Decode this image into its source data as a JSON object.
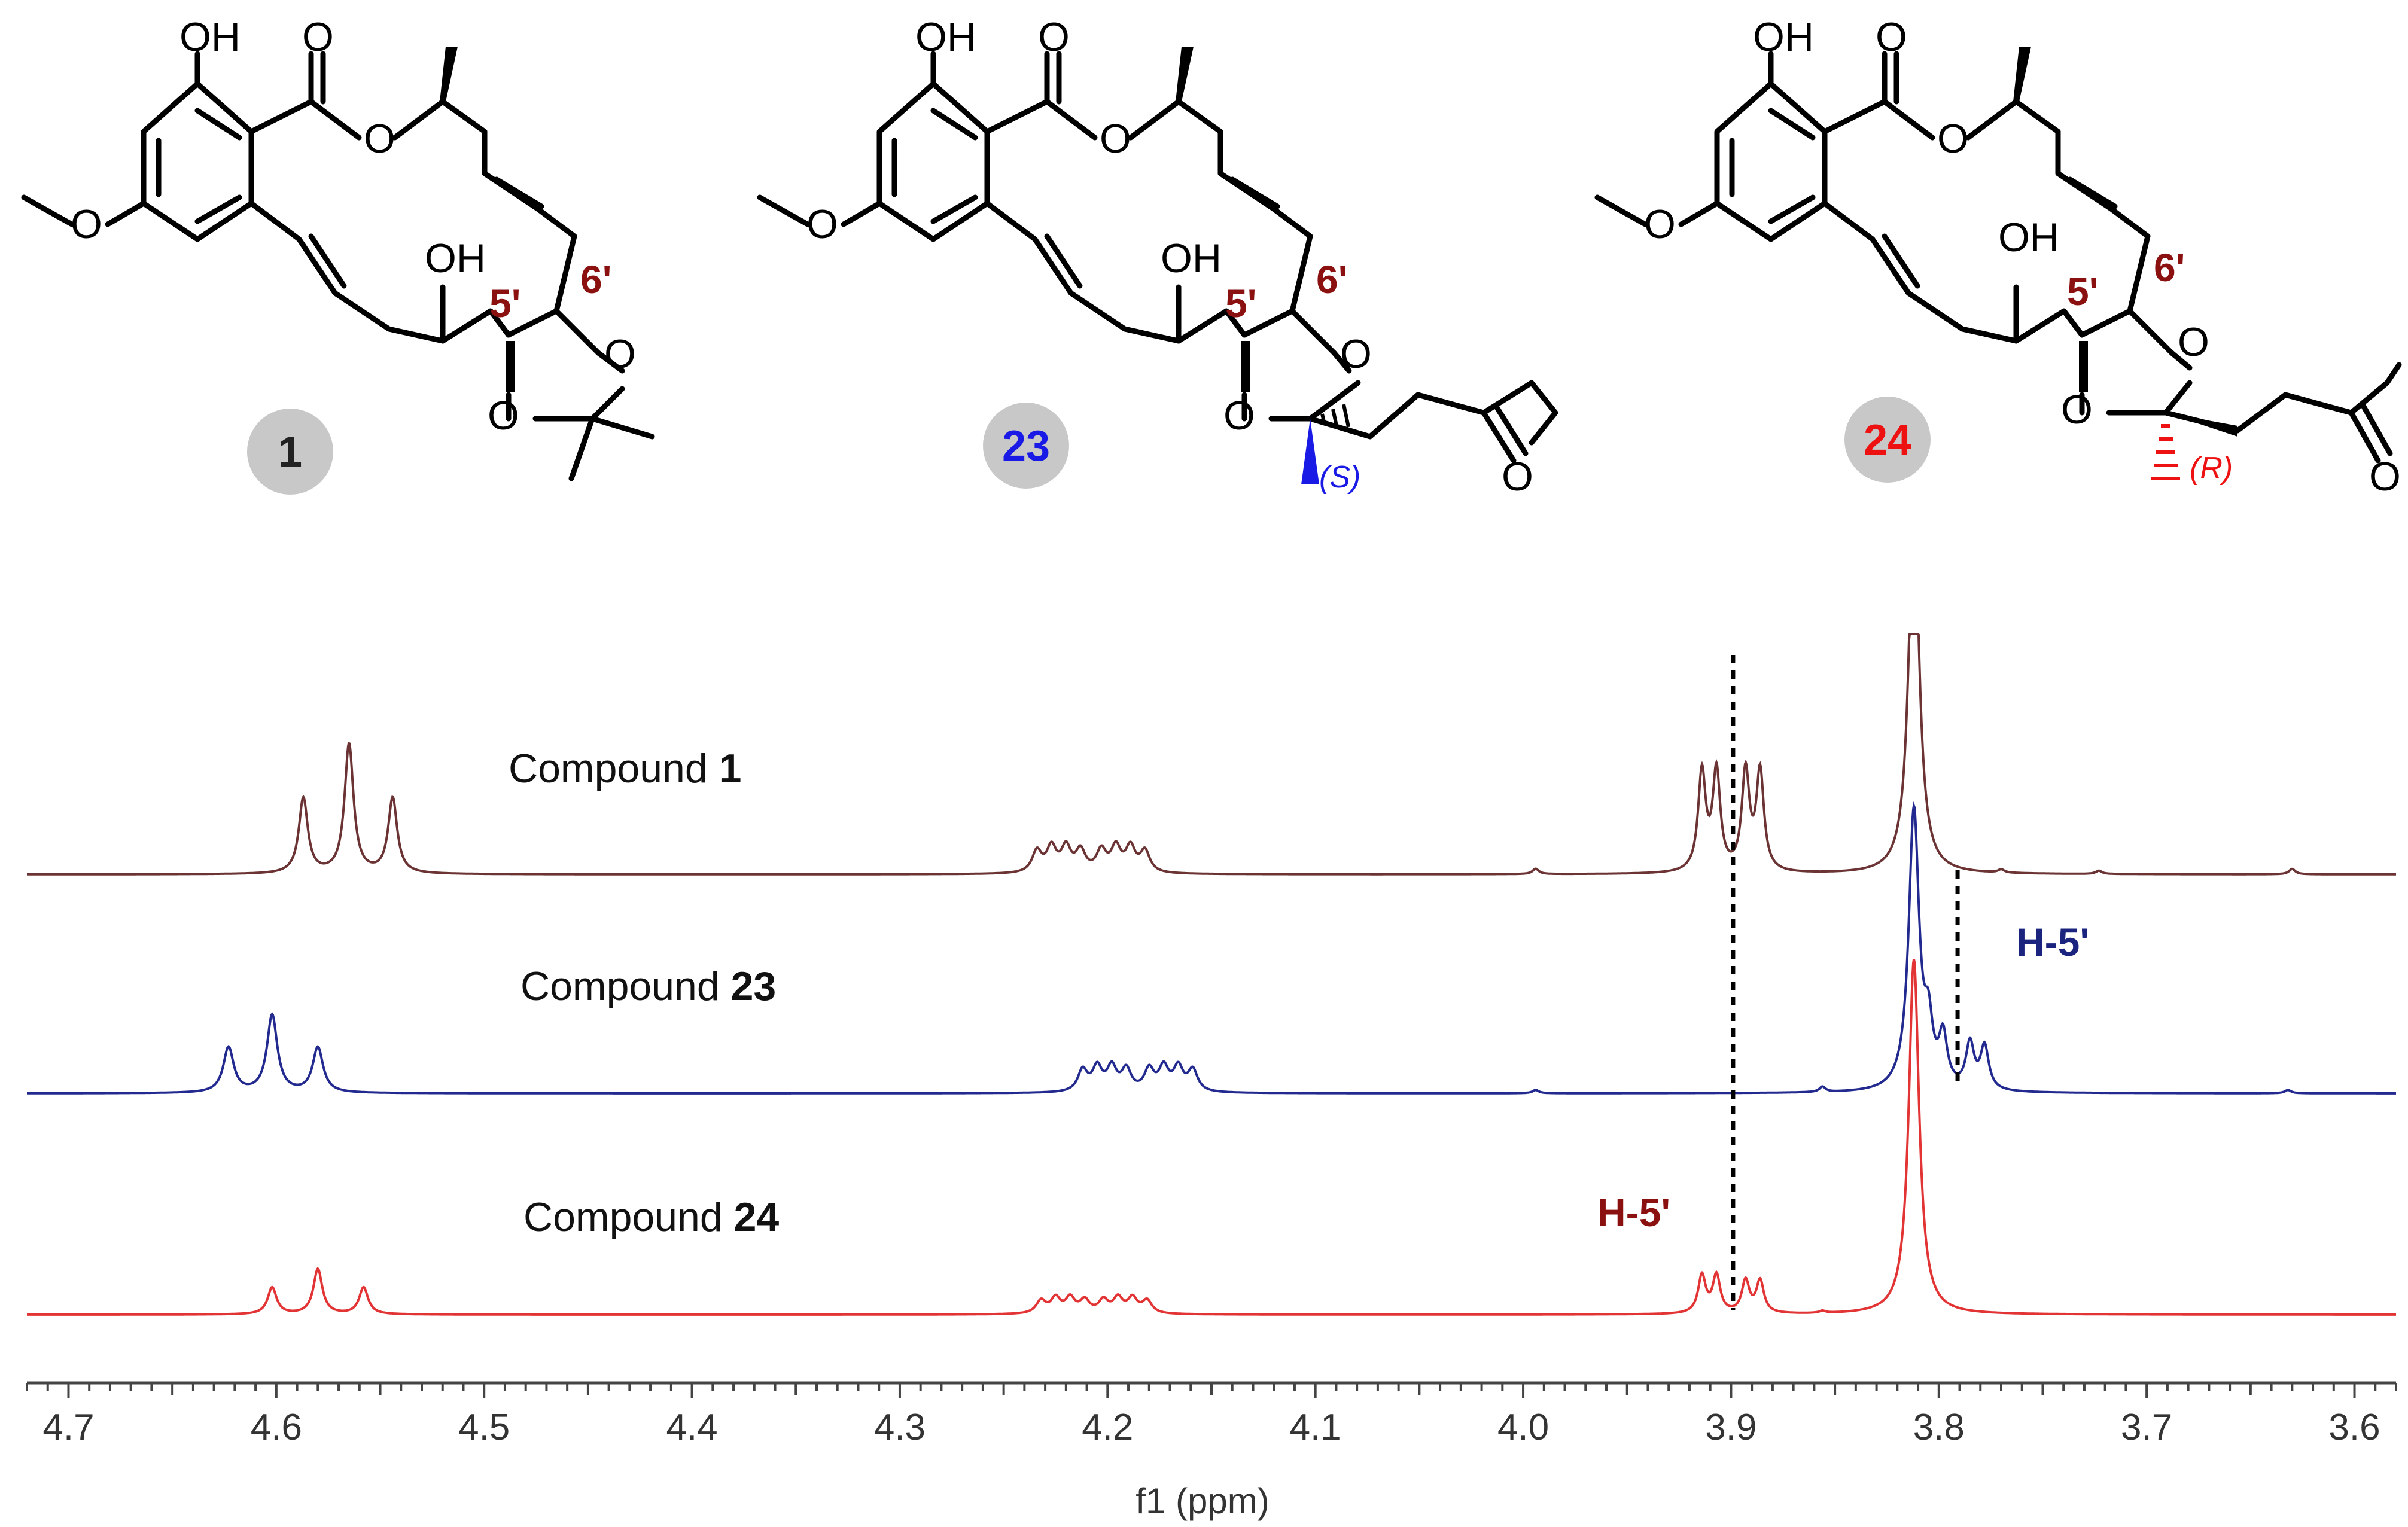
{
  "structures": [
    {
      "id": "1",
      "id_color": "#222222",
      "stereo_label": "",
      "stereo_color": "",
      "labels": {
        "oh_top": "OH",
        "o_carbonyl": "O",
        "o_ester": "O",
        "o_methoxy": "O",
        "oh_side": "OH",
        "c5": "5'",
        "c6": "6'",
        "o_left": "O",
        "o_right": "O"
      }
    },
    {
      "id": "23",
      "id_color": "#1a1ae6",
      "stereo_label": "(S)",
      "stereo_color": "#1a1ae6",
      "labels": {
        "oh_top": "OH",
        "o_carbonyl": "O",
        "o_ester": "O",
        "o_methoxy": "O",
        "oh_side": "OH",
        "c5": "5'",
        "c6": "6'",
        "o_left": "O",
        "o_right": "O",
        "o_ketone": "O"
      }
    },
    {
      "id": "24",
      "id_color": "#ee1111",
      "stereo_label": "(R)",
      "stereo_color": "#ee1111",
      "labels": {
        "oh_top": "OH",
        "o_carbonyl": "O",
        "o_ester": "O",
        "o_methoxy": "O",
        "oh_side": "OH",
        "c5": "5'",
        "c6": "6'",
        "o_left": "O",
        "o_right": "O",
        "o_ketone": "O"
      }
    }
  ],
  "colors": {
    "stereo_label_dark_red": "#8b1010",
    "badge_gray": "#c8c8c8",
    "axis": "#444444"
  },
  "chart_data": {
    "type": "line",
    "xlabel": "f1 (ppm)",
    "x_reversed": true,
    "xlim": [
      4.72,
      3.58
    ],
    "xticks": [
      "4.7",
      "4.6",
      "4.5",
      "4.4",
      "4.3",
      "4.2",
      "4.1",
      "4.0",
      "3.9",
      "3.8",
      "3.7",
      "3.6"
    ],
    "series": [
      {
        "name_prefix": "Compound ",
        "name_bold": "1",
        "color": "#6b3333",
        "peaks": [
          {
            "ppm": 4.587,
            "h": 0.7,
            "w": 0.0026
          },
          {
            "ppm": 4.565,
            "h": 1.2,
            "w": 0.0026
          },
          {
            "ppm": 4.544,
            "h": 0.7,
            "w": 0.0026
          },
          {
            "ppm": 4.234,
            "h": 0.2,
            "w": 0.0028
          },
          {
            "ppm": 4.227,
            "h": 0.23,
            "w": 0.0028
          },
          {
            "ppm": 4.22,
            "h": 0.23,
            "w": 0.0028
          },
          {
            "ppm": 4.213,
            "h": 0.2,
            "w": 0.0028
          },
          {
            "ppm": 4.203,
            "h": 0.2,
            "w": 0.0028
          },
          {
            "ppm": 4.196,
            "h": 0.23,
            "w": 0.0028
          },
          {
            "ppm": 4.189,
            "h": 0.23,
            "w": 0.0028
          },
          {
            "ppm": 4.182,
            "h": 0.2,
            "w": 0.0028
          },
          {
            "ppm": 3.994,
            "h": 0.05,
            "w": 0.0018
          },
          {
            "ppm": 3.914,
            "h": 0.92,
            "w": 0.0022
          },
          {
            "ppm": 3.907,
            "h": 0.92,
            "w": 0.0022
          },
          {
            "ppm": 3.893,
            "h": 0.92,
            "w": 0.0022
          },
          {
            "ppm": 3.886,
            "h": 0.92,
            "w": 0.0022
          },
          {
            "ppm": 3.812,
            "h": 3.5,
            "w": 0.003
          },
          {
            "ppm": 3.77,
            "h": 0.03,
            "w": 0.0018
          },
          {
            "ppm": 3.723,
            "h": 0.03,
            "w": 0.0018
          },
          {
            "ppm": 3.63,
            "h": 0.05,
            "w": 0.0018
          }
        ]
      },
      {
        "name_prefix": "Compound ",
        "name_bold": "23",
        "color": "#232a8f",
        "peaks": [
          {
            "ppm": 4.623,
            "h": 0.42,
            "w": 0.003
          },
          {
            "ppm": 4.602,
            "h": 0.72,
            "w": 0.003
          },
          {
            "ppm": 4.58,
            "h": 0.42,
            "w": 0.003
          },
          {
            "ppm": 4.212,
            "h": 0.2,
            "w": 0.0028
          },
          {
            "ppm": 4.205,
            "h": 0.22,
            "w": 0.0028
          },
          {
            "ppm": 4.198,
            "h": 0.22,
            "w": 0.0028
          },
          {
            "ppm": 4.191,
            "h": 0.2,
            "w": 0.0028
          },
          {
            "ppm": 4.18,
            "h": 0.2,
            "w": 0.0028
          },
          {
            "ppm": 4.173,
            "h": 0.22,
            "w": 0.0028
          },
          {
            "ppm": 4.166,
            "h": 0.22,
            "w": 0.0028
          },
          {
            "ppm": 4.159,
            "h": 0.2,
            "w": 0.0028
          },
          {
            "ppm": 3.994,
            "h": 0.03,
            "w": 0.0018
          },
          {
            "ppm": 3.856,
            "h": 0.05,
            "w": 0.0018
          },
          {
            "ppm": 3.812,
            "h": 2.6,
            "w": 0.003
          },
          {
            "ppm": 3.805,
            "h": 0.5,
            "w": 0.0024
          },
          {
            "ppm": 3.798,
            "h": 0.46,
            "w": 0.0024
          },
          {
            "ppm": 3.785,
            "h": 0.42,
            "w": 0.0024
          },
          {
            "ppm": 3.778,
            "h": 0.4,
            "w": 0.0024
          },
          {
            "ppm": 3.632,
            "h": 0.03,
            "w": 0.0018
          }
        ]
      },
      {
        "name_prefix": "Compound ",
        "name_bold": "24",
        "color": "#e23434",
        "peaks": [
          {
            "ppm": 4.602,
            "h": 0.25,
            "w": 0.0026
          },
          {
            "ppm": 4.58,
            "h": 0.42,
            "w": 0.0026
          },
          {
            "ppm": 4.558,
            "h": 0.25,
            "w": 0.0026
          },
          {
            "ppm": 4.232,
            "h": 0.12,
            "w": 0.0028
          },
          {
            "ppm": 4.225,
            "h": 0.14,
            "w": 0.0028
          },
          {
            "ppm": 4.218,
            "h": 0.14,
            "w": 0.0028
          },
          {
            "ppm": 4.211,
            "h": 0.12,
            "w": 0.0028
          },
          {
            "ppm": 4.202,
            "h": 0.12,
            "w": 0.0028
          },
          {
            "ppm": 4.195,
            "h": 0.14,
            "w": 0.0028
          },
          {
            "ppm": 4.188,
            "h": 0.14,
            "w": 0.0028
          },
          {
            "ppm": 4.181,
            "h": 0.12,
            "w": 0.0028
          },
          {
            "ppm": 3.914,
            "h": 0.35,
            "w": 0.0022
          },
          {
            "ppm": 3.907,
            "h": 0.35,
            "w": 0.0022
          },
          {
            "ppm": 3.893,
            "h": 0.3,
            "w": 0.0022
          },
          {
            "ppm": 3.886,
            "h": 0.3,
            "w": 0.0022
          },
          {
            "ppm": 3.856,
            "h": 0.02,
            "w": 0.0018
          },
          {
            "ppm": 3.812,
            "h": 3.3,
            "w": 0.003
          }
        ]
      }
    ],
    "annotations": [
      {
        "text": "H-5'",
        "color": "#8b1010",
        "series": 2,
        "near_ppm": 3.93
      },
      {
        "text": "H-5'",
        "color": "#1a237e",
        "series": 1,
        "near_ppm": 3.75
      }
    ],
    "dashed_guides": [
      3.899,
      3.791
    ]
  }
}
